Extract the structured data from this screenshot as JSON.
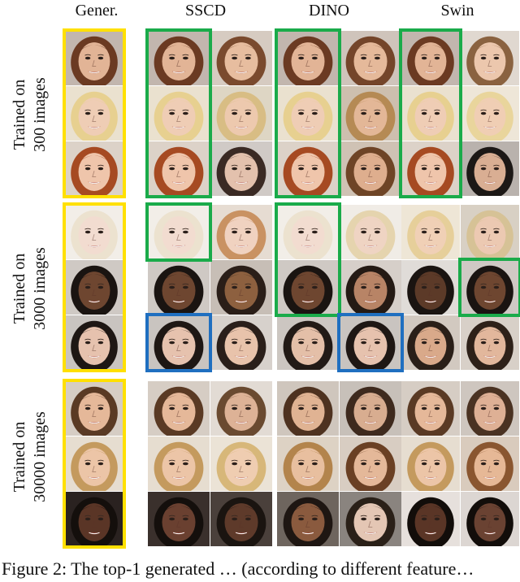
{
  "columns": [
    {
      "id": "gener",
      "label": "Gener."
    },
    {
      "id": "sscd",
      "label": "SSCD"
    },
    {
      "id": "dino",
      "label": "DINO"
    },
    {
      "id": "swin",
      "label": "Swin"
    }
  ],
  "groups": [
    {
      "label_line1": "Trained on",
      "label_line2": "300 images",
      "gener_frame": "yellow",
      "faces": [
        [
          {
            "hair": "#6b3a22",
            "skin": "#e2b496",
            "bg": "#c2b6ae"
          },
          {
            "hair": "#6b3a22",
            "skin": "#e2b496",
            "bg": "#c2b6ae"
          },
          {
            "hair": "#7a4a2e",
            "skin": "#e7bd9f",
            "bg": "#d6cbc1"
          },
          {
            "hair": "#6b3a22",
            "skin": "#e2b496",
            "bg": "#c2b6ae"
          },
          {
            "hair": "#74452a",
            "skin": "#e5b99a",
            "bg": "#cfc4bb"
          },
          {
            "hair": "#6b3a22",
            "skin": "#e2b496",
            "bg": "#c2b6ae"
          },
          {
            "hair": "#8a6240",
            "skin": "#ecc7ad",
            "bg": "#e0d8d0"
          }
        ],
        [
          {
            "hair": "#e7d090",
            "skin": "#efcdb5",
            "bg": "#eae1cf"
          },
          {
            "hair": "#e7d090",
            "skin": "#efcdb5",
            "bg": "#eae1cf"
          },
          {
            "hair": "#d8bd84",
            "skin": "#edc9ae",
            "bg": "#ded6c4"
          },
          {
            "hair": "#e7d090",
            "skin": "#efcdb5",
            "bg": "#eae1cf"
          },
          {
            "hair": "#b58a54",
            "skin": "#e3b797",
            "bg": "#cdbfae"
          },
          {
            "hair": "#e7d090",
            "skin": "#efcdb5",
            "bg": "#eae1cf"
          },
          {
            "hair": "#e9d59c",
            "skin": "#f0ceb4",
            "bg": "#eee6d8"
          }
        ],
        [
          {
            "hair": "#a64a22",
            "skin": "#efc5ab",
            "bg": "#dcd2c8"
          },
          {
            "hair": "#a64a22",
            "skin": "#efc5ab",
            "bg": "#dcd2c8"
          },
          {
            "hair": "#3a2a24",
            "skin": "#e3c1ad",
            "bg": "#d0cac6"
          },
          {
            "hair": "#a64a22",
            "skin": "#efc5ab",
            "bg": "#dcd2c8"
          },
          {
            "hair": "#6e4426",
            "skin": "#deae8e",
            "bg": "#cfc2b4"
          },
          {
            "hair": "#a64a22",
            "skin": "#efc5ab",
            "bg": "#dcd2c8"
          },
          {
            "hair": "#1c1816",
            "skin": "#d9ae93",
            "bg": "#b9b2ad"
          }
        ]
      ],
      "match_frames": [
        {
          "col": 1,
          "rows": [
            0,
            2
          ],
          "color": "green"
        },
        {
          "col": 3,
          "rows": [
            0,
            2
          ],
          "color": "green"
        },
        {
          "col": 5,
          "rows": [
            0,
            2
          ],
          "color": "green"
        }
      ]
    },
    {
      "label_line1": "Trained on",
      "label_line2": "3000 images",
      "gener_frame": "yellow",
      "faces": [
        [
          {
            "hair": "#ece2cf",
            "skin": "#f2dcd0",
            "bg": "#f2eee8"
          },
          {
            "hair": "#ece2cf",
            "skin": "#f2dcd0",
            "bg": "#f2eee8"
          },
          {
            "hair": "#c99262",
            "skin": "#f0d2c0",
            "bg": "#e6dcd2"
          },
          {
            "hair": "#ece2cf",
            "skin": "#f2dcd0",
            "bg": "#f2eee8"
          },
          {
            "hair": "#e5d4ae",
            "skin": "#efd4c3",
            "bg": "#f0ece6"
          },
          {
            "hair": "#e6cf9a",
            "skin": "#f0d0b6",
            "bg": "#eee6d6"
          },
          {
            "hair": "#d6c296",
            "skin": "#ecc9b2",
            "bg": "#d8d0c4"
          }
        ],
        [
          {
            "hair": "#1a1411",
            "skin": "#6e4630",
            "bg": "#cfc9c4"
          },
          {
            "hair": "#1a1411",
            "skin": "#6e4630",
            "bg": "#cfc9c4"
          },
          {
            "hair": "#2a1e18",
            "skin": "#8d603f",
            "bg": "#c7beb6"
          },
          {
            "hair": "#1a1411",
            "skin": "#6e4630",
            "bg": "#cfc9c4"
          },
          {
            "hair": "#241a14",
            "skin": "#b88466",
            "bg": "#d6cfc9"
          },
          {
            "hair": "#1a1411",
            "skin": "#5c3a28",
            "bg": "#e0dcd8"
          },
          {
            "hair": "#1a1411",
            "skin": "#6e4630",
            "bg": "#cfc9c4"
          }
        ],
        [
          {
            "hair": "#1e1714",
            "skin": "#e6c2ae",
            "bg": "#c9c4c0"
          },
          {
            "hair": "#1e1714",
            "skin": "#e6c2ae",
            "bg": "#c9c4c0"
          },
          {
            "hair": "#2a1f1a",
            "skin": "#e8c3ab",
            "bg": "#d7d1cc"
          },
          {
            "hair": "#221a16",
            "skin": "#e4bfa8",
            "bg": "#ccc6c1"
          },
          {
            "hair": "#1e1714",
            "skin": "#e6c2ae",
            "bg": "#c9c4c0"
          },
          {
            "hair": "#2a1f18",
            "skin": "#d9a98a",
            "bg": "#d2c9c0"
          },
          {
            "hair": "#2e2119",
            "skin": "#e2b79c",
            "bg": "#d8d0c8"
          }
        ]
      ],
      "match_frames": [
        {
          "col": 1,
          "rows": [
            0,
            0
          ],
          "color": "green"
        },
        {
          "col": 3,
          "rows": [
            0,
            1
          ],
          "color": "green"
        },
        {
          "col": 6,
          "rows": [
            1,
            1
          ],
          "color": "green"
        },
        {
          "col": 1,
          "rows": [
            2,
            2
          ],
          "color": "blue"
        },
        {
          "col": 4,
          "rows": [
            2,
            2
          ],
          "color": "blue"
        }
      ]
    },
    {
      "label_line1": "Trained on",
      "label_line2": "30000 images",
      "gener_frame": "yellow",
      "faces": [
        [
          {
            "hair": "#5a3a24",
            "skin": "#e5b899",
            "bg": "#d6cdc4"
          },
          {
            "hair": "#5a3a24",
            "skin": "#e5b899",
            "bg": "#d6cdc4"
          },
          {
            "hair": "#6a4a30",
            "skin": "#ddb296",
            "bg": "#e2dbd4"
          },
          {
            "hair": "#4e3220",
            "skin": "#e0b393",
            "bg": "#cfc6bd"
          },
          {
            "hair": "#3e2a1e",
            "skin": "#d8ad90",
            "bg": "#c7c0b9"
          },
          {
            "hair": "#5a3a24",
            "skin": "#e5b899",
            "bg": "#d6cdc4"
          },
          {
            "hair": "#4a3222",
            "skin": "#deb095",
            "bg": "#cec6bf"
          }
        ],
        [
          {
            "hair": "#c49a5e",
            "skin": "#ecc5a7",
            "bg": "#e6ddd0"
          },
          {
            "hair": "#c49a5e",
            "skin": "#ecc5a7",
            "bg": "#e6ddd0"
          },
          {
            "hair": "#d7b779",
            "skin": "#efcdb1",
            "bg": "#ebe3d6"
          },
          {
            "hair": "#b3844c",
            "skin": "#e8bf9f",
            "bg": "#ddd2c4"
          },
          {
            "hair": "#6a4024",
            "skin": "#e4b899",
            "bg": "#d8cdc2"
          },
          {
            "hair": "#c49a5e",
            "skin": "#ecc5a7",
            "bg": "#e6ddd0"
          },
          {
            "hair": "#8a5630",
            "skin": "#e6b896",
            "bg": "#d9cbbd"
          }
        ],
        [
          {
            "hair": "#140f0c",
            "skin": "#5a3526",
            "bg": "#2a2220"
          },
          {
            "hair": "#140f0c",
            "skin": "#6a4030",
            "bg": "#3a302c"
          },
          {
            "hair": "#1a1410",
            "skin": "#5e3a2a",
            "bg": "#4a403b"
          },
          {
            "hair": "#1e1612",
            "skin": "#8a5a3e",
            "bg": "#6e655e"
          },
          {
            "hair": "#2a2018",
            "skin": "#e4c6b4",
            "bg": "#8a847f"
          },
          {
            "hair": "#120d0a",
            "skin": "#5a3526",
            "bg": "#e6e0dc"
          },
          {
            "hair": "#120d0a",
            "skin": "#6a4232",
            "bg": "#dcd6d2"
          }
        ]
      ],
      "match_frames": []
    }
  ],
  "caption": "Figure 2: The top-1 generated … (according to different feature…",
  "colors": {
    "yellow": "#ffe000",
    "green": "#1aab4a",
    "blue": "#1f6fc0"
  }
}
